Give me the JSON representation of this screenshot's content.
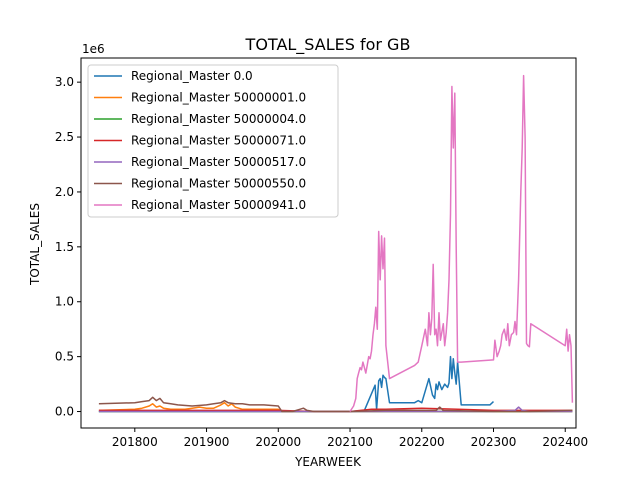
{
  "chart_data": {
    "type": "line",
    "title": "TOTAL_SALES for GB",
    "xlabel": "YEARWEEK",
    "ylabel": "TOTAL_SALES",
    "y_offset_label": "1e6",
    "xlim": [
      201725,
      202415
    ],
    "ylim": [
      -0.15,
      3.22
    ],
    "y_scale_factor": 1000000,
    "x_ticks": [
      201800,
      201900,
      202000,
      202100,
      202200,
      202300,
      202400
    ],
    "y_ticks": [
      0.0,
      0.5,
      1.0,
      1.5,
      2.0,
      2.5,
      3.0
    ],
    "x_tick_labels": [
      "201800",
      "201900",
      "202000",
      "202100",
      "202200",
      "202300",
      "202400"
    ],
    "y_tick_labels": [
      "0.0",
      "0.5",
      "1.0",
      "1.5",
      "2.0",
      "2.5",
      "3.0"
    ],
    "grid": false,
    "legend_position": "upper-left",
    "series": [
      {
        "name": "Regional_Master 0.0",
        "color": "#1f77b4",
        "x": [
          201750,
          202100,
          202120,
          202135,
          202137,
          202140,
          202142,
          202144,
          202146,
          202148,
          202150,
          202155,
          202160,
          202190,
          202195,
          202200,
          202210,
          202215,
          202218,
          202220,
          202222,
          202224,
          202228,
          202232,
          202236,
          202238,
          202240,
          202242,
          202244,
          202246,
          202248,
          202250,
          202255,
          202260,
          202295,
          202300
        ],
        "y": [
          0.0,
          0.0,
          0.01,
          0.24,
          0.02,
          0.28,
          0.3,
          0.22,
          0.33,
          0.31,
          0.3,
          0.08,
          0.08,
          0.08,
          0.1,
          0.08,
          0.3,
          0.15,
          0.12,
          0.25,
          0.2,
          0.27,
          0.2,
          0.25,
          0.22,
          0.26,
          0.5,
          0.3,
          0.48,
          0.35,
          0.25,
          0.45,
          0.06,
          0.06,
          0.06,
          0.09
        ]
      },
      {
        "name": "Regional_Master 50000001.0",
        "color": "#ff7f0e",
        "x": [
          201750,
          201800,
          201810,
          201820,
          201825,
          201830,
          201835,
          201840,
          201850,
          201860,
          201870,
          201880,
          201890,
          201900,
          201910,
          201920,
          201925,
          201930,
          201935,
          201940,
          201945,
          201950,
          201960,
          201980,
          202000,
          202005,
          202050,
          202100,
          202200,
          202300,
          202350,
          202400,
          202410
        ],
        "y": [
          0.01,
          0.02,
          0.03,
          0.05,
          0.07,
          0.04,
          0.05,
          0.03,
          0.02,
          0.02,
          0.02,
          0.03,
          0.04,
          0.03,
          0.03,
          0.06,
          0.08,
          0.05,
          0.07,
          0.04,
          0.03,
          0.02,
          0.02,
          0.02,
          0.02,
          0.0,
          0.0,
          0.0,
          0.0,
          0.0,
          0.0,
          0.0,
          0.0
        ]
      },
      {
        "name": "Regional_Master 50000004.0",
        "color": "#2ca02c",
        "x": [
          201750,
          202000,
          202100,
          202200,
          202300,
          202410
        ],
        "y": [
          0.0,
          0.0,
          0.0,
          0.0,
          0.0,
          0.0
        ]
      },
      {
        "name": "Regional_Master 50000071.0",
        "color": "#d62728",
        "x": [
          201750,
          201850,
          201950,
          202000,
          202050,
          202100,
          202130,
          202150,
          202200,
          202250,
          202300,
          202350,
          202410
        ],
        "y": [
          0.01,
          0.01,
          0.01,
          0.01,
          0.0,
          0.0,
          0.02,
          0.02,
          0.03,
          0.02,
          0.01,
          0.01,
          0.01
        ]
      },
      {
        "name": "Regional_Master 50000517.0",
        "color": "#9467bd",
        "x": [
          201750,
          202000,
          202100,
          202200,
          202300,
          202330,
          202335,
          202340,
          202350,
          202410
        ],
        "y": [
          0.0,
          0.0,
          0.0,
          0.0,
          0.0,
          0.01,
          0.04,
          0.01,
          0.0,
          0.0
        ]
      },
      {
        "name": "Regional_Master 50000550.0",
        "color": "#8c564b",
        "x": [
          201750,
          201800,
          201810,
          201820,
          201825,
          201830,
          201835,
          201840,
          201850,
          201860,
          201880,
          201900,
          201910,
          201920,
          201925,
          201930,
          201940,
          201950,
          201960,
          201980,
          202000,
          202005,
          202020,
          202030,
          202035,
          202040,
          202050,
          202100,
          202150,
          202200,
          202220,
          202225,
          202230,
          202300,
          202350,
          202410
        ],
        "y": [
          0.07,
          0.08,
          0.09,
          0.1,
          0.13,
          0.1,
          0.12,
          0.08,
          0.07,
          0.06,
          0.05,
          0.06,
          0.07,
          0.08,
          0.1,
          0.08,
          0.07,
          0.07,
          0.06,
          0.06,
          0.05,
          0.0,
          0.0,
          0.02,
          0.03,
          0.01,
          0.0,
          0.0,
          0.01,
          0.01,
          0.01,
          0.04,
          0.01,
          0.0,
          0.0,
          0.01
        ]
      },
      {
        "name": "Regional_Master 50000941.0",
        "color": "#e377c2",
        "x": [
          202100,
          202105,
          202108,
          202110,
          202112,
          202114,
          202116,
          202118,
          202120,
          202122,
          202124,
          202126,
          202128,
          202130,
          202132,
          202134,
          202136,
          202138,
          202140,
          202142,
          202144,
          202146,
          202148,
          202150,
          202155,
          202190,
          202195,
          202200,
          202205,
          202208,
          202210,
          202212,
          202214,
          202216,
          202218,
          202220,
          202222,
          202224,
          202226,
          202228,
          202230,
          202232,
          202234,
          202236,
          202238,
          202240,
          202242,
          202244,
          202246,
          202248,
          202250,
          202255,
          202300,
          202302,
          202305,
          202308,
          202310,
          202312,
          202315,
          202318,
          202320,
          202322,
          202325,
          202328,
          202330,
          202332,
          202335,
          202338,
          202340,
          202342,
          202344,
          202346,
          202348,
          202350,
          202352,
          202400,
          202402,
          202404,
          202406,
          202408,
          202410
        ],
        "y": [
          0.0,
          0.05,
          0.12,
          0.3,
          0.35,
          0.4,
          0.38,
          0.45,
          0.4,
          0.35,
          0.42,
          0.5,
          0.48,
          0.55,
          0.7,
          0.8,
          0.95,
          0.75,
          1.64,
          1.2,
          1.6,
          1.3,
          1.58,
          0.6,
          0.3,
          0.42,
          0.45,
          0.6,
          0.75,
          0.6,
          0.9,
          0.7,
          0.85,
          1.34,
          0.7,
          0.75,
          0.6,
          0.9,
          0.65,
          0.72,
          0.8,
          0.6,
          0.72,
          0.9,
          1.2,
          1.8,
          2.96,
          2.4,
          2.9,
          1.5,
          0.45,
          0.45,
          0.47,
          0.65,
          0.5,
          0.55,
          0.6,
          0.7,
          0.75,
          0.65,
          0.8,
          0.6,
          0.7,
          0.72,
          0.82,
          0.7,
          1.2,
          2.0,
          2.4,
          3.06,
          2.5,
          0.62,
          0.6,
          0.59,
          0.8,
          0.6,
          0.75,
          0.55,
          0.7,
          0.6,
          0.08
        ]
      }
    ]
  }
}
